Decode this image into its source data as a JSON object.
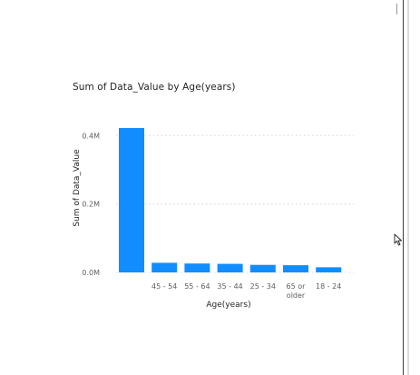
{
  "chart_data": {
    "type": "bar",
    "title": "Sum of Data_Value by Age(years)",
    "xlabel": "Age(years)",
    "ylabel": "Sum of Data_Value",
    "categories": [
      "",
      "45 - 54",
      "55 - 64",
      "35 - 44",
      "25 - 34",
      "65 or older",
      "18 - 24"
    ],
    "category_lines": [
      [
        ""
      ],
      [
        "45 - 54"
      ],
      [
        "55 - 64"
      ],
      [
        "35 - 44"
      ],
      [
        "25 - 34"
      ],
      [
        "65 or",
        "older"
      ],
      [
        "18 - 24"
      ]
    ],
    "values": [
      422000,
      28000,
      26000,
      25000,
      22000,
      21000,
      15000
    ],
    "yticks": [
      0,
      200000,
      400000
    ],
    "ytick_labels": [
      "0.0M",
      "0.2M",
      "0.4M"
    ],
    "ylim": [
      0,
      422000
    ],
    "grid": true,
    "bar_color": "#118DFF"
  },
  "colors": {
    "bar": "#118DFF",
    "grid": "#d6d6d6",
    "axis_text": "#605E5C",
    "title_text": "#252423"
  },
  "icons": {
    "cursor": "resize-cursor-icon"
  }
}
